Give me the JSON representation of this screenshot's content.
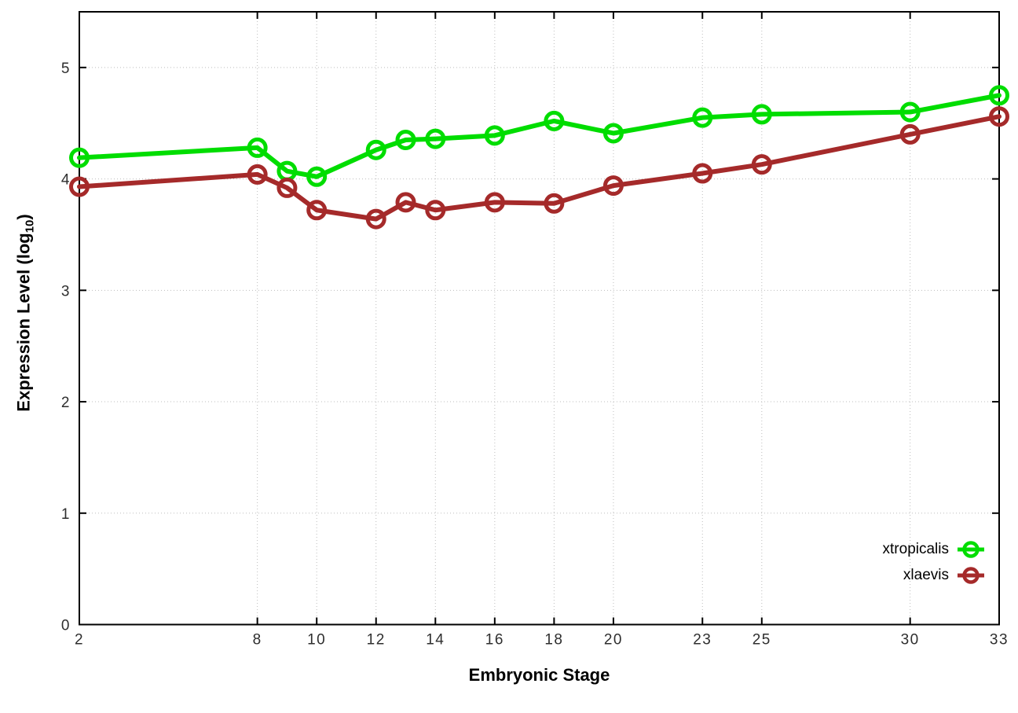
{
  "figure": {
    "background": "#ffffff",
    "frame_color": "#000000",
    "grid_color": "#bdbdbd",
    "tick_label_color": "#2e2e2e"
  },
  "axis_titles": {
    "x": "Embryonic Stage",
    "y_main": "Expression Level (log",
    "y_sub": "10",
    "y_close": ")"
  },
  "legend": {
    "items": [
      {
        "label": "xtropicalis",
        "color": "#00dd00"
      },
      {
        "label": "xlaevis",
        "color": "#a52a2a"
      }
    ]
  },
  "chart_data": {
    "type": "line",
    "title": "",
    "xlabel": "Embryonic Stage",
    "ylabel": "Expression Level (log10)",
    "x": [
      2,
      8,
      9,
      10,
      12,
      13,
      14,
      16,
      18,
      20,
      23,
      25,
      30,
      33
    ],
    "series": [
      {
        "name": "xtropicalis",
        "color": "#00dd00",
        "values": [
          4.19,
          4.28,
          4.07,
          4.02,
          4.26,
          4.35,
          4.36,
          4.39,
          4.52,
          4.41,
          4.55,
          4.58,
          4.6,
          4.75
        ]
      },
      {
        "name": "xlaevis",
        "color": "#a52a2a",
        "values": [
          3.93,
          4.04,
          3.92,
          3.72,
          3.64,
          3.79,
          3.72,
          3.79,
          3.78,
          3.94,
          4.05,
          4.13,
          4.4,
          4.56
        ]
      }
    ],
    "x_ticks": [
      2,
      8,
      10,
      12,
      14,
      16,
      18,
      20,
      23,
      25,
      30,
      33
    ],
    "y_ticks": [
      0,
      1,
      2,
      3,
      4,
      5
    ],
    "xlim": [
      2,
      33
    ],
    "ylim": [
      0,
      5.5
    ],
    "grid": true,
    "legend_position": "bottom-right",
    "marker": "open-circle",
    "line_width": 6
  }
}
